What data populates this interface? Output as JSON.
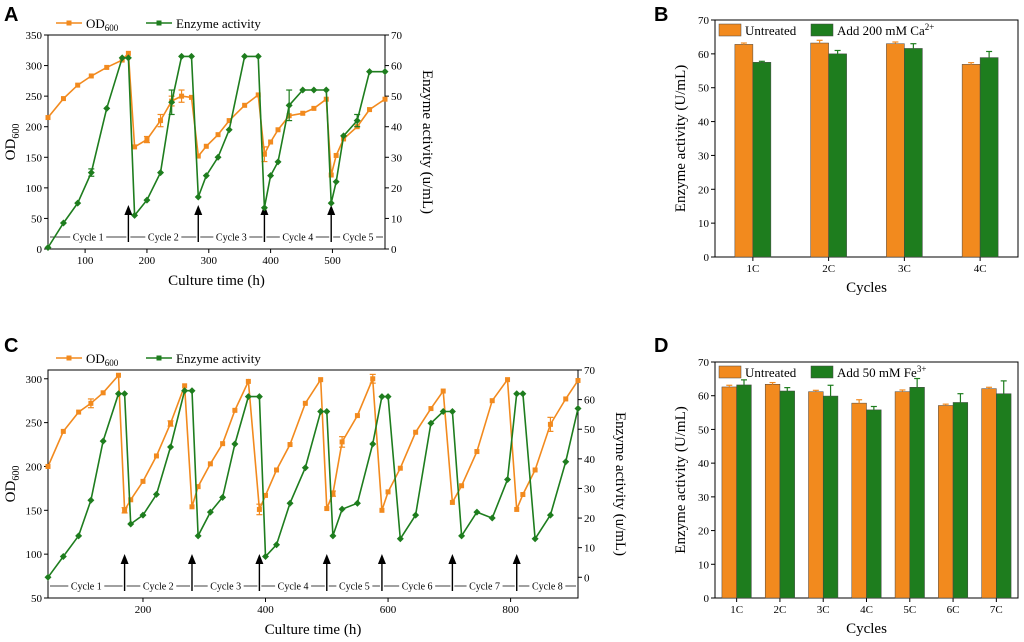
{
  "colors": {
    "orange": "#F28A1E",
    "green": "#1E7D1E",
    "axis": "#000000"
  },
  "chart_data": [
    {
      "panel": "A",
      "type": "line",
      "legend": [
        "OD600",
        "Enzyme activity"
      ],
      "legend_od_main": "OD",
      "legend_od_sub": "600",
      "xlabel": "Culture time (h)",
      "ylabel_left_main": "OD",
      "ylabel_left_sub": "600",
      "ylabel_right": "Enzyme activity (u/mL)",
      "xlim": [
        40,
        585
      ],
      "xticks": [
        100,
        200,
        300,
        400,
        500
      ],
      "ylim_left": [
        0,
        350
      ],
      "yticks_left": [
        0,
        50,
        100,
        150,
        200,
        250,
        300,
        350
      ],
      "ylim_right": [
        0,
        70
      ],
      "yticks_right": [
        0,
        10,
        20,
        30,
        40,
        50,
        60,
        70
      ],
      "series": [
        {
          "name": "OD600",
          "axis": "left",
          "x": [
            40,
            65,
            88,
            110,
            135,
            160,
            170,
            180,
            200,
            222,
            240,
            256,
            272,
            283,
            296,
            315,
            333,
            358,
            380,
            390,
            400,
            412,
            430,
            452,
            470,
            490,
            498,
            506,
            518,
            540,
            560,
            585
          ],
          "y": [
            215,
            246,
            268,
            283,
            297,
            309,
            320,
            167,
            179,
            210,
            242,
            250,
            248,
            152,
            168,
            187,
            210,
            235,
            252,
            155,
            175,
            195,
            218,
            222,
            230,
            245,
            121,
            153,
            180,
            200,
            228,
            245
          ],
          "err": [
            0,
            0,
            0,
            0,
            0,
            0,
            0,
            0,
            5,
            10,
            8,
            10,
            0,
            0,
            0,
            0,
            0,
            0,
            0,
            12,
            0,
            0,
            0,
            0,
            0,
            0,
            0,
            0,
            0,
            0,
            0,
            0
          ]
        },
        {
          "name": "Enzyme activity",
          "axis": "right",
          "x": [
            40,
            65,
            88,
            110,
            135,
            160,
            170,
            180,
            200,
            222,
            240,
            256,
            272,
            283,
            296,
            315,
            333,
            358,
            380,
            390,
            400,
            412,
            430,
            452,
            470,
            490,
            498,
            506,
            518,
            540,
            560,
            585
          ],
          "y": [
            0.5,
            8.5,
            15,
            25,
            46,
            62.5,
            62.5,
            11,
            16,
            25,
            48,
            63,
            63,
            17,
            24,
            30,
            39,
            63,
            63,
            13.5,
            24,
            28.5,
            47,
            52,
            52,
            52,
            15,
            22,
            37,
            42,
            58,
            58
          ],
          "err": [
            0,
            0,
            0,
            1.2,
            0,
            0,
            0,
            0,
            0,
            0,
            4,
            0,
            0,
            0,
            0,
            0,
            0,
            0,
            0,
            0,
            0,
            0,
            5,
            0,
            0,
            0,
            0,
            0,
            0,
            2,
            0,
            0
          ]
        }
      ],
      "arrows_x": [
        170,
        283,
        390,
        498
      ],
      "cycle_labels": [
        "Cycle 1",
        "Cycle 2",
        "Cycle 3",
        "Cycle 4",
        "Cycle 5"
      ]
    },
    {
      "panel": "B",
      "type": "bar",
      "categories": [
        "1C",
        "2C",
        "3C",
        "4C"
      ],
      "series": [
        {
          "name": "Untreated",
          "values": [
            62.8,
            63.2,
            63.0,
            56.9
          ],
          "err": [
            0.4,
            0.8,
            0.5,
            0.5
          ]
        },
        {
          "name": "Add 200 mM Ca2+",
          "values": [
            57.5,
            60.0,
            61.6,
            58.9
          ],
          "err": [
            0.3,
            1.0,
            1.4,
            1.8
          ]
        }
      ],
      "legend_main": [
        "Untreated",
        "Add 200 mM Ca"
      ],
      "legend_sup": [
        "",
        "2+"
      ],
      "xlabel": "Cycles",
      "ylabel": "Enzyme activity (U/mL)",
      "ylim": [
        0,
        70
      ],
      "yticks": [
        0,
        10,
        20,
        30,
        40,
        50,
        60,
        70
      ]
    },
    {
      "panel": "C",
      "type": "line",
      "legend": [
        "OD600",
        "Enzyme activity"
      ],
      "legend_od_main": "OD",
      "legend_od_sub": "600",
      "xlabel": "Culture time (h)",
      "ylabel_left_main": "OD",
      "ylabel_left_sub": "600",
      "ylabel_right": "Enzyme activity (u/mL)",
      "xlim": [
        45,
        910
      ],
      "xticks": [
        200,
        400,
        600,
        800
      ],
      "ylim_left": [
        50,
        310
      ],
      "yticks_left": [
        50,
        100,
        150,
        200,
        250,
        300
      ],
      "ylim_right": [
        -7,
        70
      ],
      "yticks_right": [
        0,
        10,
        20,
        30,
        40,
        50,
        60,
        70
      ],
      "series": [
        {
          "name": "OD600",
          "axis": "left",
          "x": [
            45,
            70,
            95,
            115,
            135,
            160,
            170,
            180,
            200,
            222,
            245,
            268,
            280,
            290,
            310,
            330,
            350,
            372,
            390,
            400,
            418,
            440,
            465,
            490,
            500,
            510,
            525,
            550,
            575,
            590,
            600,
            620,
            645,
            670,
            690,
            705,
            720,
            745,
            770,
            795,
            810,
            820,
            840,
            865,
            890,
            910
          ],
          "y": [
            200,
            240,
            262,
            272,
            284,
            304,
            150,
            162,
            183,
            212,
            249,
            292,
            154,
            177,
            203,
            226,
            264,
            297,
            151,
            167,
            196,
            225,
            272,
            299,
            152,
            169,
            228,
            258,
            300,
            150,
            171,
            198,
            239,
            266,
            286,
            159,
            178,
            217,
            275,
            299,
            151,
            168,
            196,
            248,
            277,
            298
          ],
          "err": [
            0,
            0,
            0,
            5,
            0,
            0,
            3,
            0,
            0,
            0,
            3,
            0,
            0,
            0,
            0,
            0,
            0,
            0,
            6,
            0,
            0,
            0,
            0,
            0,
            0,
            3,
            6,
            0,
            5,
            0,
            0,
            0,
            0,
            0,
            0,
            0,
            0,
            0,
            0,
            0,
            0,
            0,
            0,
            8,
            0,
            0
          ]
        },
        {
          "name": "Enzyme activity",
          "axis": "right",
          "x": [
            45,
            70,
            95,
            115,
            135,
            160,
            170,
            180,
            200,
            222,
            245,
            268,
            280,
            290,
            310,
            330,
            350,
            372,
            390,
            400,
            418,
            440,
            465,
            490,
            500,
            510,
            525,
            550,
            575,
            590,
            600,
            620,
            645,
            670,
            690,
            705,
            720,
            745,
            770,
            795,
            810,
            820,
            840,
            865,
            890,
            910
          ],
          "y": [
            0,
            7,
            14,
            26,
            46,
            62,
            62,
            18,
            21,
            28,
            44,
            63,
            63,
            14,
            22,
            27,
            45,
            61,
            61,
            7,
            11,
            25,
            37,
            56,
            56,
            14,
            23,
            25,
            45,
            61,
            61,
            13,
            21,
            52,
            56,
            56,
            14,
            22,
            20,
            33,
            62,
            62,
            13,
            21,
            39,
            57
          ],
          "err": [
            0,
            0,
            0,
            0,
            0,
            0,
            0,
            0,
            0,
            0,
            0,
            0,
            0,
            0,
            0,
            0,
            0,
            0,
            0,
            0,
            0,
            0,
            0,
            0,
            0,
            0,
            0,
            0,
            0,
            0,
            0,
            0,
            0,
            0,
            0,
            0,
            0,
            0,
            0,
            0,
            0,
            0,
            0,
            0,
            0,
            0
          ]
        }
      ],
      "arrows_x": [
        170,
        280,
        390,
        500,
        590,
        705,
        810
      ],
      "cycle_labels": [
        "Cycle 1",
        "Cycle 2",
        "Cycle 3",
        "Cycle 4",
        "Cycle 5",
        "Cycle 6",
        "Cycle 7",
        "Cycle 8"
      ]
    },
    {
      "panel": "D",
      "type": "bar",
      "categories": [
        "1C",
        "2C",
        "3C",
        "4C",
        "5C",
        "6C",
        "7C"
      ],
      "series": [
        {
          "name": "Untreated",
          "values": [
            62.6,
            63.4,
            61.2,
            57.8,
            61.2,
            57.1,
            62.1
          ],
          "err": [
            0.5,
            0.5,
            0.4,
            1.0,
            0.5,
            0.4,
            0.4
          ]
        },
        {
          "name": "Add 50 mM Fe3+",
          "values": [
            63.2,
            61.4,
            59.9,
            55.8,
            62.5,
            58.0,
            60.6
          ],
          "err": [
            1.5,
            1.0,
            3.2,
            1.0,
            2.6,
            2.6,
            3.8
          ]
        }
      ],
      "legend_main": [
        "Untreated",
        "Add 50 mM Fe"
      ],
      "legend_sup": [
        "",
        "3+"
      ],
      "xlabel": "Cycles",
      "ylabel": "Enzyme activity (U/mL)",
      "ylim": [
        0,
        70
      ],
      "yticks": [
        0,
        10,
        20,
        30,
        40,
        50,
        60,
        70
      ]
    }
  ]
}
